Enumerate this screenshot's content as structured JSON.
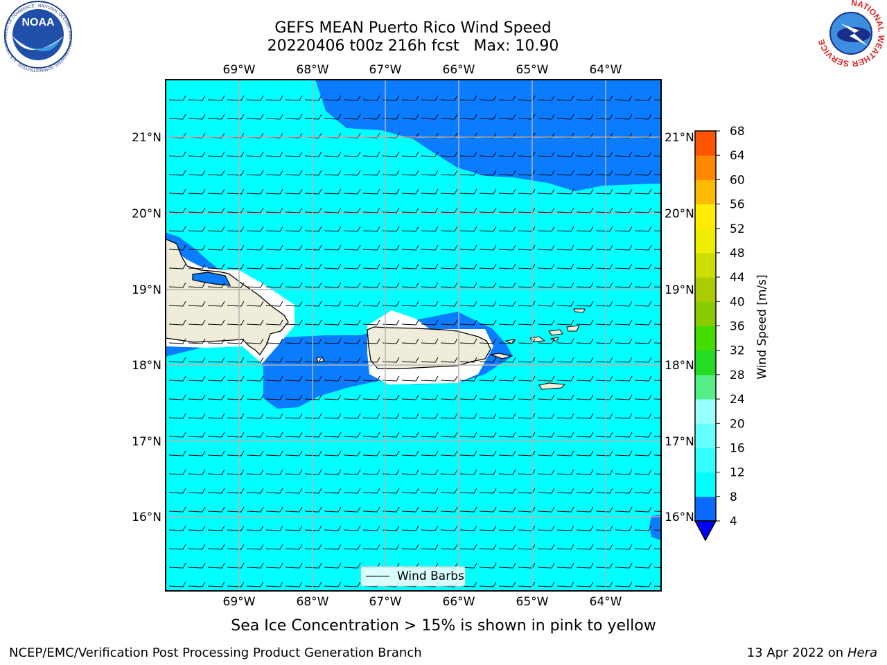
{
  "title": {
    "line1": "GEFS MEAN Puerto Rico Wind Speed",
    "line2": "20220406 t00z 216h fcst   Max: 10.90"
  },
  "caption": "Sea Ice Concentration > 15% is shown in pink to yellow",
  "footer": {
    "left": "NCEP/EMC/Verification Post Processing Product Generation Branch",
    "right_prefix": "13 Apr 2022 on ",
    "right_italic": "Hera"
  },
  "logos": {
    "left": {
      "text": "NOAA",
      "ring_text": "NATIONAL OCEANIC AND ATMOSPHERIC ADMINISTRATION · U.S. DEPARTMENT OF COMMERCE"
    },
    "right": {
      "ring_text": "NATIONAL WEATHER SERVICE"
    }
  },
  "map": {
    "lon_labels": [
      "69°W",
      "68°W",
      "67°W",
      "66°W",
      "65°W",
      "64°W"
    ],
    "lat_labels": [
      "21°N",
      "20°N",
      "19°N",
      "18°N",
      "17°N",
      "16°N"
    ],
    "legend_label": "Wind Barbs"
  },
  "colorbar": {
    "label": "Wind Speed [m/s]",
    "ticks": [
      "4",
      "8",
      "12",
      "16",
      "20",
      "24",
      "28",
      "32",
      "36",
      "40",
      "44",
      "48",
      "52",
      "56",
      "60",
      "64",
      "68"
    ],
    "colors": [
      "#0a6cff",
      "#00ffff",
      "#33ffff",
      "#66ffff",
      "#99ffff",
      "#55ee88",
      "#22dd22",
      "#44dd00",
      "#88cc00",
      "#aacc00",
      "#ccdd00",
      "#eeee00",
      "#ffee00",
      "#ffbb00",
      "#ff8800",
      "#ff5500",
      "#ff2200",
      "#ff0000"
    ],
    "under_color": "#0000ff"
  },
  "colors": {
    "sea_low": "#00ffff",
    "sea_mid": "#0a7cff",
    "land": "#efecd9",
    "grid": "#b4b4b4"
  }
}
